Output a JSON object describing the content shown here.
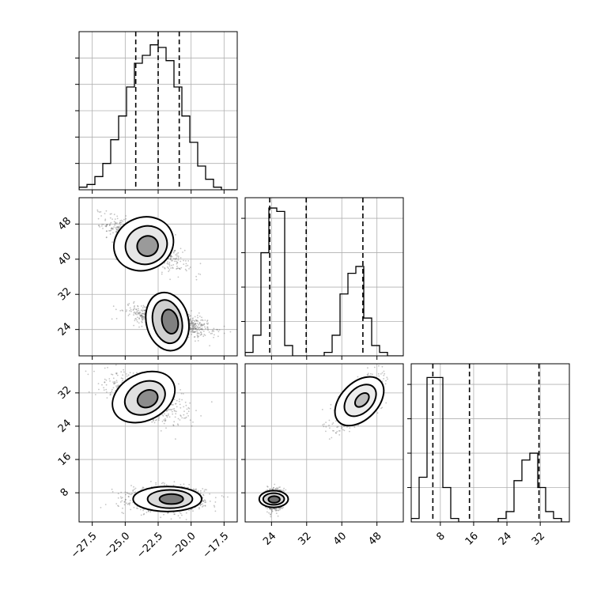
{
  "chart_data": [
    {
      "type": "histogram",
      "panel": "1d-param-1",
      "x_range": [
        -28.5,
        -16.5
      ],
      "xticks": [
        -27.5,
        -25.0,
        -22.5,
        -20.0,
        -17.5
      ],
      "xtick_labels": [],
      "ytick_labels": [],
      "grid": true,
      "style": "step",
      "color": "#000000",
      "bins_edges": [
        -28.5,
        -27.9,
        -27.3,
        -26.7,
        -26.1,
        -25.5,
        -24.9,
        -24.3,
        -23.7,
        -23.1,
        -22.5,
        -21.9,
        -21.3,
        -20.7,
        -20.1,
        -19.5,
        -18.9,
        -18.3,
        -17.7,
        -17.1,
        -16.5
      ],
      "counts": [
        1,
        2,
        5,
        10,
        19,
        28,
        39,
        48,
        51,
        55,
        54,
        49,
        39,
        28,
        18,
        9,
        4,
        1,
        0,
        0
      ],
      "ylim": [
        0,
        60
      ],
      "quantiles": [
        -24.2,
        -22.5,
        -20.9
      ]
    },
    {
      "type": "histogram",
      "panel": "1d-param-2",
      "x_range": [
        18,
        54
      ],
      "xticks": [
        24,
        32,
        40,
        48
      ],
      "xtick_labels": [],
      "ytick_labels": [],
      "grid": true,
      "style": "step",
      "color": "#000000",
      "bins_edges": [
        18,
        19.8,
        21.6,
        23.4,
        25.2,
        27,
        28.8,
        30.6,
        32.4,
        34.2,
        36,
        37.8,
        39.6,
        41.4,
        43.2,
        45,
        46.8,
        48.6,
        50.4,
        52.2,
        54
      ],
      "counts": [
        1,
        6,
        30,
        43,
        42,
        3,
        0,
        0,
        0,
        0,
        1,
        6,
        18,
        24,
        26,
        11,
        3,
        1,
        0,
        0
      ],
      "ylim": [
        0,
        46
      ],
      "quantiles": [
        23.6,
        31.9,
        44.8
      ]
    },
    {
      "type": "histogram",
      "panel": "1d-param-3",
      "x_range": [
        1,
        39
      ],
      "xticks": [
        8,
        16,
        24,
        32
      ],
      "xtick_labels": [
        "8",
        "16",
        "24",
        "32"
      ],
      "ytick_labels": [],
      "grid": true,
      "style": "step",
      "color": "#000000",
      "bins_edges": [
        1,
        2.9,
        4.8,
        6.7,
        8.6,
        10.5,
        12.4,
        14.3,
        16.2,
        18.1,
        20,
        21.9,
        23.8,
        25.7,
        27.6,
        29.5,
        31.4,
        33.3,
        35.2,
        37.1,
        39
      ],
      "counts": [
        1,
        13,
        42,
        42,
        10,
        1,
        0,
        0,
        0,
        0,
        0,
        1,
        3,
        12,
        18,
        20,
        10,
        3,
        1,
        0
      ],
      "ylim": [
        0,
        46
      ],
      "quantiles": [
        6.2,
        15.0,
        31.7
      ]
    },
    {
      "type": "scatter",
      "panel": "2d-param-1-vs-param-2",
      "x_range": [
        -28.5,
        -16.5
      ],
      "y_range": [
        18,
        54
      ],
      "xticks": [
        -27.5,
        -25.0,
        -22.5,
        -20.0,
        -17.5
      ],
      "yticks": [
        24,
        32,
        40,
        48
      ],
      "xtick_labels": [],
      "ytick_labels": [
        "24",
        "32",
        "40",
        "48"
      ],
      "grid": true,
      "clusters": [
        {
          "center": [
            -23.5,
            43.5
          ],
          "std": [
            1.4,
            2.8
          ],
          "corr": -0.8,
          "points": 900
        },
        {
          "center": [
            -21.5,
            26.0
          ],
          "std": [
            1.4,
            1.6
          ],
          "corr": -0.6,
          "points": 1100
        }
      ],
      "contours": [
        {
          "center": [
            -23.6,
            43.5
          ],
          "rx": 2.3,
          "ry": 6.0,
          "angle_deg": 22,
          "fill": "#ffffff"
        },
        {
          "center": [
            -23.4,
            43.2
          ],
          "rx": 1.6,
          "ry": 4.3,
          "angle_deg": 22,
          "fill": "#e6e6e6"
        },
        {
          "center": [
            -23.3,
            43.0
          ],
          "rx": 0.8,
          "ry": 2.3,
          "angle_deg": 22,
          "fill": "#9a9a9a"
        },
        {
          "center": [
            -21.8,
            25.8
          ],
          "rx": 1.6,
          "ry": 6.7,
          "angle_deg": 13,
          "fill": "#ffffff"
        },
        {
          "center": [
            -21.8,
            25.8
          ],
          "rx": 1.1,
          "ry": 5.0,
          "angle_deg": 13,
          "fill": "#d0d0d0"
        },
        {
          "center": [
            -21.6,
            25.8
          ],
          "rx": 0.6,
          "ry": 2.8,
          "angle_deg": 13,
          "fill": "#808080"
        }
      ]
    },
    {
      "type": "scatter",
      "panel": "2d-param-1-vs-param-3",
      "x_range": [
        -28.5,
        -16.5
      ],
      "y_range": [
        1,
        39
      ],
      "xticks": [
        -27.5,
        -25.0,
        -22.5,
        -20.0,
        -17.5
      ],
      "yticks": [
        8,
        16,
        24,
        32
      ],
      "xtick_labels": [
        "−27.5",
        "−25.0",
        "−22.5",
        "−20.0",
        "−17.5"
      ],
      "ytick_labels": [
        "8",
        "16",
        "24",
        "32"
      ],
      "grid": true,
      "clusters": [
        {
          "center": [
            -23.5,
            31.0
          ],
          "std": [
            1.4,
            2.7
          ],
          "corr": -0.6,
          "points": 900
        },
        {
          "center": [
            -21.8,
            6.5
          ],
          "std": [
            1.4,
            1.4
          ],
          "corr": 0.0,
          "points": 1100
        }
      ],
      "contours": [
        {
          "center": [
            -23.6,
            31.0
          ],
          "rx": 2.5,
          "ry": 5.6,
          "angle_deg": 27,
          "fill": "#ffffff"
        },
        {
          "center": [
            -23.5,
            30.8
          ],
          "rx": 1.6,
          "ry": 3.8,
          "angle_deg": 27,
          "fill": "#e0e0e0"
        },
        {
          "center": [
            -23.3,
            30.6
          ],
          "rx": 0.8,
          "ry": 2.0,
          "angle_deg": 27,
          "fill": "#8c8c8c"
        },
        {
          "center": [
            -21.8,
            6.5
          ],
          "rx": 2.6,
          "ry": 3.0,
          "angle_deg": 0,
          "fill": "#ffffff"
        },
        {
          "center": [
            -21.6,
            6.5
          ],
          "rx": 1.7,
          "ry": 2.2,
          "angle_deg": 0,
          "fill": "#dadada"
        },
        {
          "center": [
            -21.5,
            6.5
          ],
          "rx": 0.9,
          "ry": 1.2,
          "angle_deg": 0,
          "fill": "#7a7a7a"
        }
      ]
    },
    {
      "type": "scatter",
      "panel": "2d-param-2-vs-param-3",
      "x_range": [
        18,
        54
      ],
      "y_range": [
        1,
        39
      ],
      "xticks": [
        24,
        32,
        40,
        48
      ],
      "yticks": [
        8,
        16,
        24,
        32
      ],
      "xtick_labels": [
        "24",
        "32",
        "40",
        "48"
      ],
      "ytick_labels": [],
      "grid": true,
      "clusters": [
        {
          "center": [
            44.0,
            30.0
          ],
          "std": [
            2.6,
            2.8
          ],
          "corr": 0.7,
          "points": 900
        },
        {
          "center": [
            24.5,
            6.5
          ],
          "std": [
            1.0,
            1.2
          ],
          "corr": 0.0,
          "points": 1100
        }
      ],
      "contours": [
        {
          "center": [
            44.0,
            30.0
          ],
          "rx": 4.2,
          "ry": 7.0,
          "angle_deg": -45,
          "fill": "#ffffff"
        },
        {
          "center": [
            44.2,
            30.2
          ],
          "rx": 2.8,
          "ry": 4.5,
          "angle_deg": -45,
          "fill": "#ececec"
        },
        {
          "center": [
            44.6,
            30.3
          ],
          "rx": 1.2,
          "ry": 2.0,
          "angle_deg": -45,
          "fill": "#bdbdbd"
        },
        {
          "center": [
            24.5,
            6.5
          ],
          "rx": 3.3,
          "ry": 2.0,
          "angle_deg": 0,
          "fill": "#ffffff"
        },
        {
          "center": [
            24.5,
            6.5
          ],
          "rx": 2.4,
          "ry": 1.4,
          "angle_deg": 0,
          "fill": "#d4d4d4"
        },
        {
          "center": [
            24.6,
            6.4
          ],
          "rx": 1.3,
          "ry": 0.8,
          "angle_deg": 0,
          "fill": "#707070"
        }
      ]
    }
  ]
}
